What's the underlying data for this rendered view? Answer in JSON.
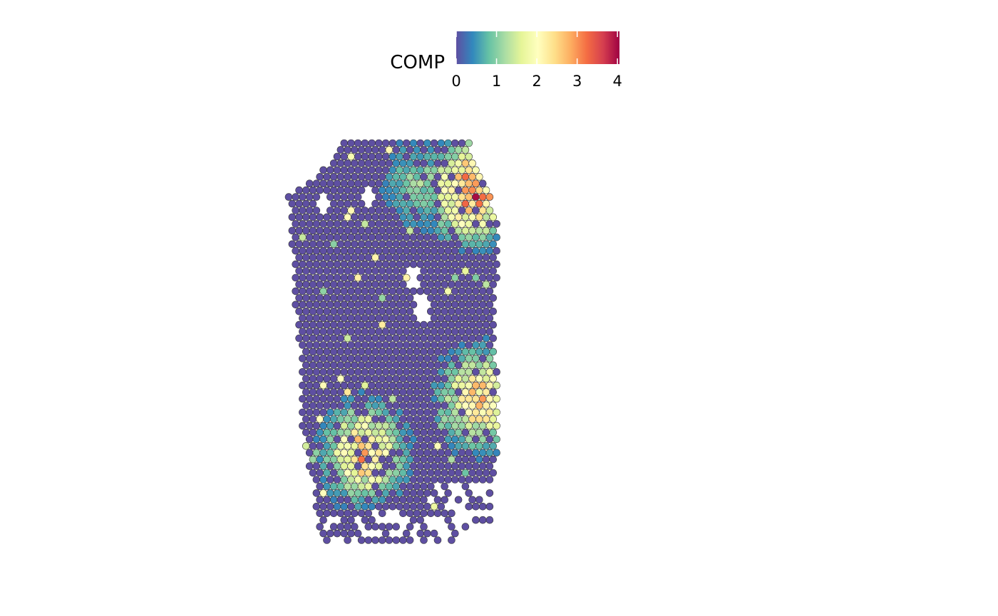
{
  "chart_data": {
    "type": "scatter",
    "subtype": "spatial-spot-map",
    "title": "",
    "xlabel": "",
    "ylabel": "",
    "grid": false,
    "axes_visible": false,
    "legend": {
      "title": "COMP",
      "placement": "top-center",
      "orientation": "horizontal",
      "kind": "continuous-colorbar",
      "ticks": [
        "0",
        "1",
        "2",
        "3",
        "4"
      ],
      "range": [
        0,
        4.05
      ]
    },
    "colormap": [
      "#5e4fa2",
      "#3288bd",
      "#66c2a5",
      "#abdda4",
      "#e6f598",
      "#ffffbf",
      "#fee08b",
      "#fdae61",
      "#f46d43",
      "#d53e4f",
      "#9e0142"
    ],
    "point_style": {
      "marker": "circle",
      "stroke": "#333333"
    },
    "tissue_outline": {
      "units": "spot-grid",
      "rows": 60,
      "cols": 64,
      "left_edge": [
        [
          0,
          16
        ],
        [
          4,
          10
        ],
        [
          8,
          0
        ],
        [
          12,
          1
        ],
        [
          16,
          1
        ],
        [
          20,
          2
        ],
        [
          24,
          2
        ],
        [
          30,
          3
        ],
        [
          36,
          4
        ],
        [
          42,
          4
        ],
        [
          46,
          5
        ],
        [
          50,
          7
        ],
        [
          54,
          8
        ],
        [
          58,
          9
        ],
        [
          59,
          9
        ]
      ],
      "right_edge": [
        [
          0,
          52
        ],
        [
          4,
          55
        ],
        [
          8,
          58
        ],
        [
          12,
          60
        ],
        [
          16,
          60
        ],
        [
          20,
          60
        ],
        [
          26,
          59
        ],
        [
          30,
          59
        ],
        [
          34,
          60
        ],
        [
          40,
          60
        ],
        [
          46,
          60
        ],
        [
          52,
          59
        ],
        [
          56,
          58
        ],
        [
          60,
          57
        ]
      ],
      "holes": [
        [
          9,
          10
        ],
        [
          8,
          23
        ],
        [
          20,
          36
        ],
        [
          24,
          38
        ],
        [
          25,
          39
        ]
      ]
    },
    "hotspots": [
      {
        "name": "top-right",
        "center": [
          7,
          53
        ],
        "peak": 4.0
      },
      {
        "name": "bottom-left",
        "center": [
          46,
          22
        ],
        "peak": 3.2
      },
      {
        "name": "right-middle",
        "center": [
          38,
          55
        ],
        "peak": 3.1
      },
      {
        "name": "upper-middle",
        "center": [
          6,
          38
        ],
        "peak": 1.3
      }
    ]
  }
}
